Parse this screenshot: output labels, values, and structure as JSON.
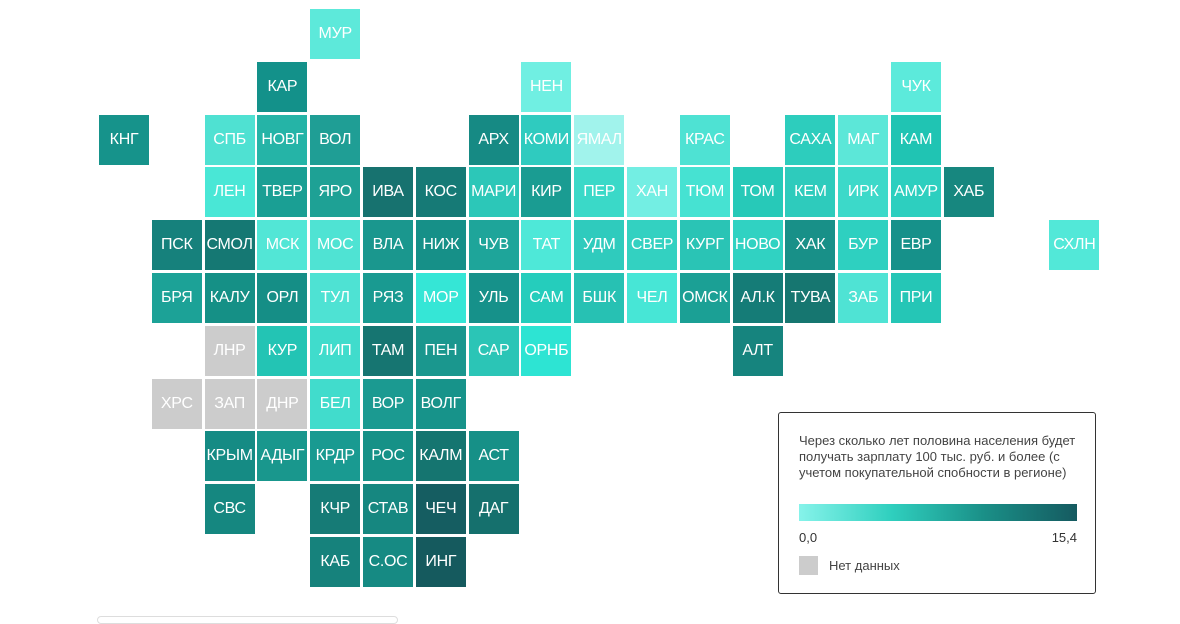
{
  "legend": {
    "title": "Через сколько лет половина населения будет получать зарплату 100 тыс. руб. и более (с учетом покупательной спобности в регионе)",
    "min_label": "0,0",
    "max_label": "15,4",
    "nodata_label": "Нет данных",
    "gradient_colors": [
      "#86f3ea",
      "#2fcfbe",
      "#1a8f87",
      "#155a60"
    ],
    "nodata_color": "#cccccc"
  },
  "regions": [
    {
      "label": "МУР",
      "row": 0,
      "col": 4,
      "color": "#5de9da"
    },
    {
      "label": "КАР",
      "row": 1,
      "col": 3,
      "color": "#13918a"
    },
    {
      "label": "НЕН",
      "row": 1,
      "col": 8,
      "color": "#70efe2"
    },
    {
      "label": "ЧУК",
      "row": 1,
      "col": 15,
      "color": "#5ceadb"
    },
    {
      "label": "КНГ",
      "row": 2,
      "col": 0,
      "color": "#16938b"
    },
    {
      "label": "СПБ",
      "row": 2,
      "col": 2,
      "color": "#4fe1d2"
    },
    {
      "label": "НОВГ",
      "row": 2,
      "col": 3,
      "color": "#25b4a7"
    },
    {
      "label": "ВОЛ",
      "row": 2,
      "col": 4,
      "color": "#1f9e95"
    },
    {
      "label": "АРХ",
      "row": 2,
      "col": 7,
      "color": "#168a84"
    },
    {
      "label": "КОМИ",
      "row": 2,
      "col": 8,
      "color": "#2fcbbf"
    },
    {
      "label": "ЯМАЛ",
      "row": 2,
      "col": 9,
      "color": "#a1f3ec"
    },
    {
      "label": "КРАС",
      "row": 2,
      "col": 11,
      "color": "#4ee2d3"
    },
    {
      "label": "САХА",
      "row": 2,
      "col": 13,
      "color": "#2dcdbd"
    },
    {
      "label": "МАГ",
      "row": 2,
      "col": 14,
      "color": "#5ce7d8"
    },
    {
      "label": "КАМ",
      "row": 2,
      "col": 15,
      "color": "#20c4b3"
    },
    {
      "label": "ЛЕН",
      "row": 3,
      "col": 2,
      "color": "#49e7d6"
    },
    {
      "label": "ТВЕР",
      "row": 3,
      "col": 3,
      "color": "#1a9f94"
    },
    {
      "label": "ЯРО",
      "row": 3,
      "col": 4,
      "color": "#1ea195"
    },
    {
      "label": "ИВА",
      "row": 3,
      "col": 5,
      "color": "#17726f"
    },
    {
      "label": "КОС",
      "row": 3,
      "col": 6,
      "color": "#167a76"
    },
    {
      "label": "МАРИ",
      "row": 3,
      "col": 7,
      "color": "#2cc7b8"
    },
    {
      "label": "КИР",
      "row": 3,
      "col": 8,
      "color": "#1a9c92"
    },
    {
      "label": "ПЕР",
      "row": 3,
      "col": 9,
      "color": "#3ad9c8"
    },
    {
      "label": "ХАН",
      "row": 3,
      "col": 10,
      "color": "#73eee3"
    },
    {
      "label": "ТЮМ",
      "row": 3,
      "col": 11,
      "color": "#46e2d2"
    },
    {
      "label": "ТОМ",
      "row": 3,
      "col": 12,
      "color": "#27c9b8"
    },
    {
      "label": "КЕМ",
      "row": 3,
      "col": 13,
      "color": "#2ecbbc"
    },
    {
      "label": "ИРК",
      "row": 3,
      "col": 14,
      "color": "#3cd9c9"
    },
    {
      "label": "АМУР",
      "row": 3,
      "col": 15,
      "color": "#2dcfbf"
    },
    {
      "label": "ХАБ",
      "row": 3,
      "col": 16,
      "color": "#17877f"
    },
    {
      "label": "ПСК",
      "row": 4,
      "col": 1,
      "color": "#16817c"
    },
    {
      "label": "СМОЛ",
      "row": 4,
      "col": 2,
      "color": "#157873"
    },
    {
      "label": "МСК",
      "row": 4,
      "col": 3,
      "color": "#52e6d6"
    },
    {
      "label": "МОС",
      "row": 4,
      "col": 4,
      "color": "#4fe3d3"
    },
    {
      "label": "ВЛА",
      "row": 4,
      "col": 5,
      "color": "#1a978e"
    },
    {
      "label": "НИЖ",
      "row": 4,
      "col": 6,
      "color": "#169088"
    },
    {
      "label": "ЧУВ",
      "row": 4,
      "col": 7,
      "color": "#1ea59a"
    },
    {
      "label": "ТАТ",
      "row": 4,
      "col": 8,
      "color": "#4ee8d8"
    },
    {
      "label": "УДМ",
      "row": 4,
      "col": 9,
      "color": "#2fcbbd"
    },
    {
      "label": "СВЕР",
      "row": 4,
      "col": 10,
      "color": "#33d1c1"
    },
    {
      "label": "КУРГ",
      "row": 4,
      "col": 11,
      "color": "#2ac4b5"
    },
    {
      "label": "НОВО",
      "row": 4,
      "col": 12,
      "color": "#30d2c2"
    },
    {
      "label": "ХАК",
      "row": 4,
      "col": 13,
      "color": "#189088"
    },
    {
      "label": "БУР",
      "row": 4,
      "col": 14,
      "color": "#2ed0c0"
    },
    {
      "label": "ЕВР",
      "row": 4,
      "col": 15,
      "color": "#16918a"
    },
    {
      "label": "СХЛН",
      "row": 4,
      "col": 18,
      "color": "#52e8d8"
    },
    {
      "label": "БРЯ",
      "row": 5,
      "col": 1,
      "color": "#1ca297"
    },
    {
      "label": "КАЛУ",
      "row": 5,
      "col": 2,
      "color": "#159086"
    },
    {
      "label": "ОРЛ",
      "row": 5,
      "col": 3,
      "color": "#158e86"
    },
    {
      "label": "ТУЛ",
      "row": 5,
      "col": 4,
      "color": "#4ee2d3"
    },
    {
      "label": "РЯЗ",
      "row": 5,
      "col": 5,
      "color": "#199a91"
    },
    {
      "label": "МОР",
      "row": 5,
      "col": 6,
      "color": "#35e6d6"
    },
    {
      "label": "УЛЬ",
      "row": 5,
      "col": 7,
      "color": "#16918a"
    },
    {
      "label": "САМ",
      "row": 5,
      "col": 8,
      "color": "#25cdbc"
    },
    {
      "label": "БШК",
      "row": 5,
      "col": 9,
      "color": "#27c1b3"
    },
    {
      "label": "ЧЕЛ",
      "row": 5,
      "col": 10,
      "color": "#47e6d6"
    },
    {
      "label": "ОМСК",
      "row": 5,
      "col": 11,
      "color": "#1ba095"
    },
    {
      "label": "АЛ.К",
      "row": 5,
      "col": 12,
      "color": "#157c77"
    },
    {
      "label": "ТУВА",
      "row": 5,
      "col": 13,
      "color": "#167670"
    },
    {
      "label": "ЗАБ",
      "row": 5,
      "col": 14,
      "color": "#4fe3d4"
    },
    {
      "label": "ПРИ",
      "row": 5,
      "col": 15,
      "color": "#25c6b6"
    },
    {
      "label": "ЛНР",
      "row": 6,
      "col": 2,
      "color": "#cccccc"
    },
    {
      "label": "КУР",
      "row": 6,
      "col": 3,
      "color": "#23c4b4"
    },
    {
      "label": "ЛИП",
      "row": 6,
      "col": 4,
      "color": "#40dccc"
    },
    {
      "label": "ТАМ",
      "row": 6,
      "col": 5,
      "color": "#167571"
    },
    {
      "label": "ПЕН",
      "row": 6,
      "col": 6,
      "color": "#1a978e"
    },
    {
      "label": "САР",
      "row": 6,
      "col": 7,
      "color": "#2bc5b6"
    },
    {
      "label": "ОРНБ",
      "row": 6,
      "col": 8,
      "color": "#2de4d3"
    },
    {
      "label": "АЛТ",
      "row": 6,
      "col": 12,
      "color": "#16847e"
    },
    {
      "label": "ХРС",
      "row": 7,
      "col": 1,
      "color": "#cccccc"
    },
    {
      "label": "ЗАП",
      "row": 7,
      "col": 2,
      "color": "#cccccc"
    },
    {
      "label": "ДНР",
      "row": 7,
      "col": 3,
      "color": "#cccccc"
    },
    {
      "label": "БЕЛ",
      "row": 7,
      "col": 4,
      "color": "#41dccc"
    },
    {
      "label": "ВОР",
      "row": 7,
      "col": 5,
      "color": "#1b9a91"
    },
    {
      "label": "ВОЛГ",
      "row": 7,
      "col": 6,
      "color": "#17938a"
    },
    {
      "label": "КРЫМ",
      "row": 8,
      "col": 2,
      "color": "#158b84"
    },
    {
      "label": "АДЫГ",
      "row": 8,
      "col": 3,
      "color": "#19978d"
    },
    {
      "label": "КРДР",
      "row": 8,
      "col": 4,
      "color": "#199a91"
    },
    {
      "label": "РОС",
      "row": 8,
      "col": 5,
      "color": "#169187"
    },
    {
      "label": "КАЛМ",
      "row": 8,
      "col": 6,
      "color": "#157570"
    },
    {
      "label": "АСТ",
      "row": 8,
      "col": 7,
      "color": "#169087"
    },
    {
      "label": "СВС",
      "row": 9,
      "col": 2,
      "color": "#158780"
    },
    {
      "label": "КЧР",
      "row": 9,
      "col": 4,
      "color": "#167b76"
    },
    {
      "label": "СТАВ",
      "row": 9,
      "col": 5,
      "color": "#168780"
    },
    {
      "label": "ЧЕЧ",
      "row": 9,
      "col": 6,
      "color": "#155d61"
    },
    {
      "label": "ДАГ",
      "row": 9,
      "col": 7,
      "color": "#15706d"
    },
    {
      "label": "КАБ",
      "row": 10,
      "col": 4,
      "color": "#16827c"
    },
    {
      "label": "С.ОС",
      "row": 10,
      "col": 5,
      "color": "#168a83"
    },
    {
      "label": "ИНГ",
      "row": 10,
      "col": 6,
      "color": "#155a5e"
    }
  ]
}
